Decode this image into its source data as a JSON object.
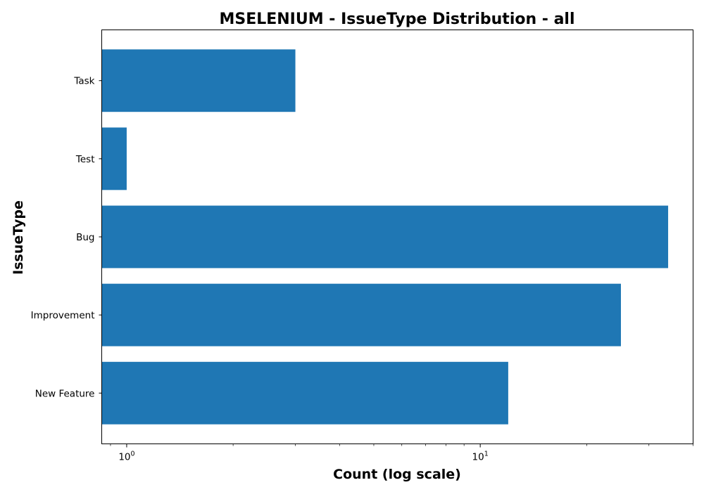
{
  "chart_data": {
    "type": "bar",
    "orientation": "horizontal",
    "title": "MSELENIUM - IssueType Distribution - all",
    "xlabel": "Count (log scale)",
    "ylabel": "IssueType",
    "x_scale": "log",
    "xlim": [
      0.85,
      40
    ],
    "categories": [
      "Task",
      "Test",
      "Bug",
      "Improvement",
      "New Feature"
    ],
    "values": [
      3,
      1,
      34,
      25,
      12
    ],
    "x_major_ticks": [
      {
        "base": "10",
        "exp": "0",
        "value": 1
      },
      {
        "base": "10",
        "exp": "1",
        "value": 10
      }
    ],
    "bar_color": "#1f77b4",
    "grid": false,
    "legend": "none"
  }
}
